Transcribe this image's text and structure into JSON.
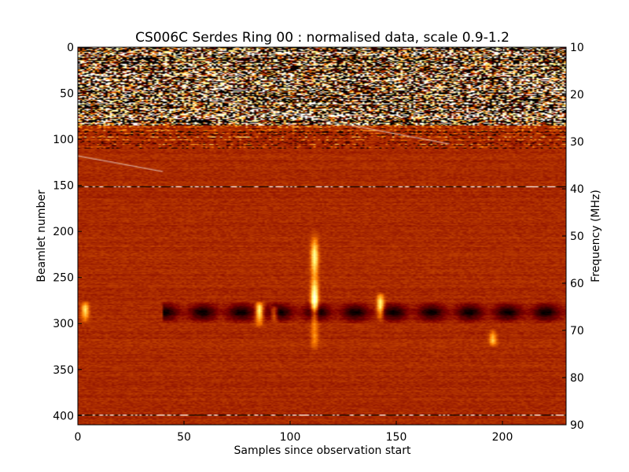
{
  "chart_data": {
    "type": "heatmap",
    "title": "CS006C Serdes Ring 00 : normalised data, scale 0.9-1.2",
    "xlabel": "Samples since observation start",
    "ylabel": "Beamlet number",
    "ylabel_right": "Frequency (MHz)",
    "xlim": [
      0,
      230
    ],
    "ylim": [
      410,
      0
    ],
    "ylim_right": [
      90,
      10
    ],
    "x_ticks": [
      0,
      50,
      100,
      150,
      200
    ],
    "x_tick_labels": [
      "0",
      "50",
      "100",
      "150",
      "200"
    ],
    "y_ticks": [
      0,
      50,
      100,
      150,
      200,
      250,
      300,
      350,
      400
    ],
    "y_tick_labels": [
      "0",
      "50",
      "100",
      "150",
      "200",
      "250",
      "300",
      "350",
      "400"
    ],
    "y_right_ticks": [
      10,
      20,
      30,
      40,
      50,
      60,
      70,
      80,
      90
    ],
    "y_right_tick_labels": [
      "10",
      "20",
      "30",
      "40",
      "50",
      "60",
      "70",
      "80",
      "90"
    ],
    "color_scale": {
      "min": 0.9,
      "max": 1.2,
      "colormap": "afmhot"
    },
    "grid": false,
    "background_level": 1.0,
    "features": [
      {
        "name": "noisy-band",
        "beamlet_range": [
          0,
          110
        ],
        "sample_range": [
          0,
          230
        ],
        "description": "strong RFI/saturated noise, low frequencies"
      },
      {
        "name": "rfi-line",
        "beamlet": 151,
        "sample_range": [
          0,
          230
        ]
      },
      {
        "name": "rfi-line",
        "beamlet": 399,
        "sample_range": [
          0,
          230
        ]
      },
      {
        "name": "dark-band",
        "beamlet_range": [
          275,
          300
        ],
        "sample_range": [
          40,
          230
        ],
        "value": 0.92
      },
      {
        "name": "burst",
        "sample": 111,
        "beamlet_range": [
          195,
          330
        ],
        "value": 1.2
      },
      {
        "name": "burst",
        "sample": 85,
        "beamlet_range": [
          275,
          305
        ],
        "value": 1.2
      },
      {
        "name": "burst",
        "sample": 92,
        "beamlet_range": [
          280,
          300
        ],
        "value": 1.15
      },
      {
        "name": "burst",
        "sample": 142,
        "beamlet_range": [
          265,
          300
        ],
        "value": 1.15
      },
      {
        "name": "burst",
        "sample": 3,
        "beamlet_range": [
          275,
          300
        ],
        "value": 1.15
      },
      {
        "name": "burst",
        "sample": 195,
        "beamlet_range": [
          305,
          325
        ],
        "value": 1.12
      },
      {
        "name": "diagonal-streak",
        "from": [
          60,
          55
        ],
        "to": [
          175,
          105
        ]
      },
      {
        "name": "diagonal-streak",
        "from": [
          0,
          118
        ],
        "to": [
          40,
          135
        ]
      }
    ]
  }
}
